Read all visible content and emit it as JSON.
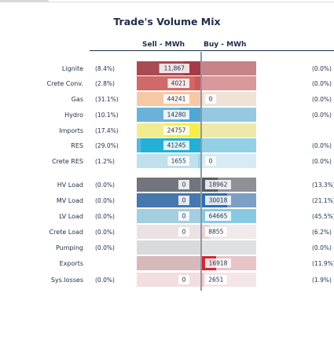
{
  "title": "Trade's Volume Mix",
  "chart_data": {
    "type": "bar",
    "title": "Trade's Volume Mix",
    "sell_header": "Sell - MWh",
    "buy_header": "Buy - MWh",
    "categories": [
      "Lignite",
      "Crete Conv.",
      "Gas",
      "Hydro",
      "Imports",
      "RES",
      "Crete RES",
      "HV Load",
      "MV Load",
      "LV Load",
      "Crete Load",
      "Pumping",
      "Exports",
      "Sys.losses"
    ],
    "sell_values": [
      11867,
      4021,
      44241,
      14280,
      24757,
      41245,
      1655,
      0,
      0,
      0,
      0,
      0,
      null,
      0
    ],
    "sell_labels": [
      "11,867",
      "4021",
      "44241",
      "14280",
      "24757",
      "41245",
      "1655",
      "0",
      "0",
      "0",
      "0",
      "",
      "",
      "0"
    ],
    "sell_pct": [
      "(8.4%)",
      "(2.8%)",
      "(31.1%)",
      "(10.1%)",
      "(17.4%)",
      "(29.0%)",
      "(1.2%)",
      "(0.0%)",
      "(0.0%)",
      "(0.0%)",
      "(0.0%)",
      "(0.0%)",
      "",
      "(0.0%)"
    ],
    "buy_values": [
      null,
      null,
      0,
      null,
      null,
      null,
      0,
      18962,
      30018,
      64665,
      8855,
      null,
      16918,
      2651
    ],
    "buy_labels": [
      "",
      "",
      "0",
      "",
      "",
      "",
      "0",
      "18962",
      "30018",
      "64665",
      "8855",
      "",
      "16918",
      "2651"
    ],
    "buy_pct": [
      "(0.0%)",
      "(0.0%)",
      "(0.0%)",
      "(0.0%)",
      "",
      "(0.0%)",
      "(0.0%)",
      "(13.3%)",
      "(21.1%)",
      "(45.5%)",
      "(6.2%)",
      "(0.0%)",
      "(11.9%)",
      "(1.9%)"
    ],
    "colors": {
      "sell": [
        "#a53b45",
        "#d45555",
        "#f7c8a6",
        "#4fa7d6",
        "#f6ee45",
        "#22b0d6",
        "#9dd7ee",
        null,
        null,
        null,
        null,
        null,
        null,
        null
      ],
      "buy": [
        null,
        null,
        null,
        null,
        null,
        null,
        null,
        "#5a5a64",
        "#2c6fb0",
        "#88c9e2",
        "#e9d3d5",
        null,
        "#cf2a34",
        "#f5c8cc"
      ],
      "sell_bg": [
        "#a94b52",
        "#cf6a68",
        "#f3d9c5",
        "#6bb2d8",
        "#f1ec8f",
        "#59b8d9",
        "#bfe0ec",
        "#72757d",
        "#4677ad",
        "#a3cee0",
        "#ece2e3",
        "#d9dadc",
        "#d7b9bc",
        "#f2dedf"
      ],
      "buy_bg": [
        "#c8838a",
        "#d9999b",
        "#efe3d8",
        "#97c8e2",
        "#eee9aa",
        "#93d0e5",
        "#d7ebf2",
        "#8e9096",
        "#7d9fc5",
        "#bcdbe8",
        "#f1e9ea",
        "#dfe0e2",
        "#e7c4c8",
        "#f4e6e7"
      ],
      "text": "#1f2d4a"
    }
  }
}
